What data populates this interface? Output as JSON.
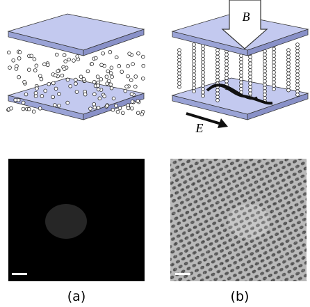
{
  "fields": {
    "magnetic": "B",
    "electric": "E"
  },
  "panels": [
    {
      "caption": "(a)"
    },
    {
      "caption": "(b)"
    }
  ]
}
